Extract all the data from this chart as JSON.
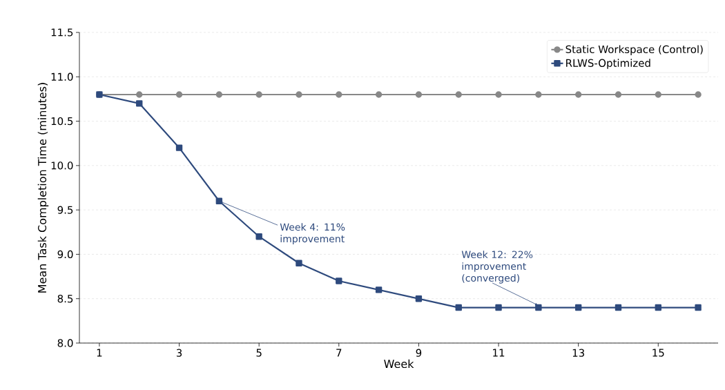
{
  "chart_data": {
    "type": "line",
    "xlabel": "Week",
    "ylabel": "Mean Task Completion Time (minutes)",
    "x": [
      1,
      2,
      3,
      4,
      5,
      6,
      7,
      8,
      9,
      10,
      11,
      12,
      13,
      14,
      15,
      16
    ],
    "series": [
      {
        "name": "Static Workspace (Control)",
        "color": "#888888",
        "marker": "circle",
        "values": [
          10.8,
          10.8,
          10.8,
          10.8,
          10.8,
          10.8,
          10.8,
          10.8,
          10.8,
          10.8,
          10.8,
          10.8,
          10.8,
          10.8,
          10.8,
          10.8
        ]
      },
      {
        "name": "RLWS-Optimized",
        "color": "#2e4a7d",
        "marker": "square",
        "values": [
          10.8,
          10.7,
          10.2,
          9.6,
          9.2,
          8.9,
          8.7,
          8.6,
          8.5,
          8.4,
          8.4,
          8.4,
          8.4,
          8.4,
          8.4,
          8.4
        ]
      }
    ],
    "xlim": [
      0.5,
      16.5
    ],
    "xticks": [
      1,
      3,
      5,
      7,
      9,
      11,
      13,
      15
    ],
    "ylim": [
      8.0,
      11.5
    ],
    "yticks": [
      {
        "value": 8.0,
        "label": "8.0"
      },
      {
        "value": 8.5,
        "label": "8.5"
      },
      {
        "value": 9.0,
        "label": "9.0"
      },
      {
        "value": 9.5,
        "label": "9.5"
      },
      {
        "value": 10.0,
        "label": "10.0"
      },
      {
        "value": 10.5,
        "label": "10.5"
      },
      {
        "value": 11.0,
        "label": "11.0"
      },
      {
        "value": 11.5,
        "label": "11.5"
      }
    ],
    "grid": "y",
    "legend": "top right",
    "line_style": "solid",
    "annotations": [
      {
        "text": "Week 4: 11% improvement",
        "x": 4,
        "y": 9.6
      },
      {
        "text": "Week 12: 22% improvement (converged)",
        "x": 12,
        "y": 8.4
      }
    ]
  }
}
